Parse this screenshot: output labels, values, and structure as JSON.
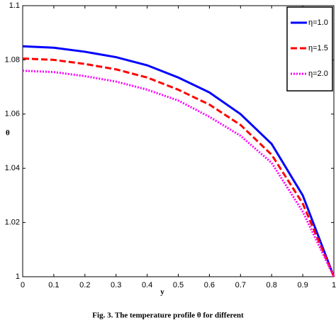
{
  "chart_data": {
    "type": "line",
    "caption": "Fig. 3. The temperature profile θ for different",
    "x_label": "y",
    "y_label": "θ",
    "x": [
      0,
      0.1,
      0.2,
      0.3,
      0.4,
      0.5,
      0.6,
      0.7,
      0.8,
      0.9,
      1
    ],
    "series": [
      {
        "name": "η=1.0",
        "color": "#0000ff",
        "dash": "",
        "values": [
          1.085,
          1.0845,
          1.083,
          1.081,
          1.078,
          1.0735,
          1.068,
          1.06,
          1.049,
          1.03,
          1.0
        ]
      },
      {
        "name": "η=1.5",
        "color": "#ff0000",
        "dash": "9,4",
        "values": [
          1.0805,
          1.08,
          1.0785,
          1.0765,
          1.0735,
          1.069,
          1.0635,
          1.056,
          1.045,
          1.027,
          1.0
        ]
      },
      {
        "name": "η=2.0",
        "color": "#ff00ff",
        "dash": "2,2",
        "values": [
          1.076,
          1.0755,
          1.074,
          1.072,
          1.069,
          1.065,
          1.059,
          1.052,
          1.042,
          1.024,
          1.0
        ]
      }
    ],
    "xlim": [
      0,
      1
    ],
    "ylim": [
      1,
      1.1
    ],
    "xticks": [
      0,
      0.1,
      0.2,
      0.3,
      0.4,
      0.5,
      0.6,
      0.7,
      0.8,
      0.9,
      1
    ],
    "yticks": [
      1,
      1.02,
      1.04,
      1.06,
      1.08,
      1.1
    ],
    "legend": "upper-right"
  }
}
